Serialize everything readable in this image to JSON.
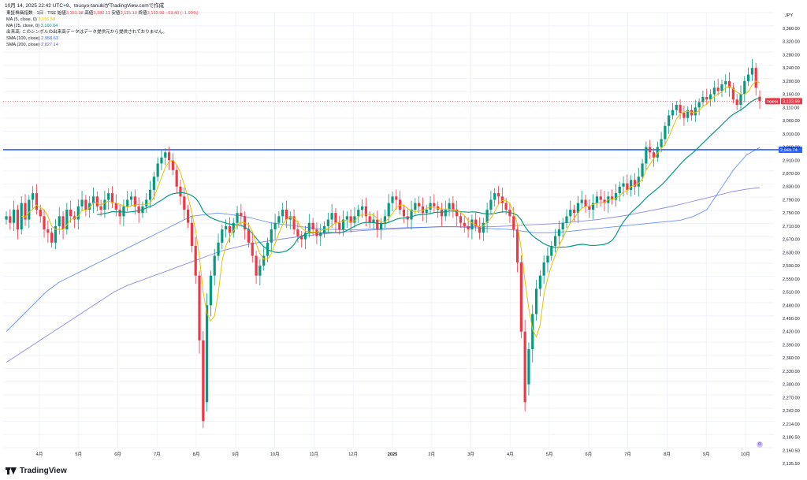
{
  "header": {
    "title": "10月 14, 2025 22:42 UTC+9、tousyo-tanukiがTradingView.comで作成"
  },
  "legend": {
    "symbol_line": "東証株価指数 · 1日 · TSE",
    "ohlc": [
      {
        "label": "始値",
        "value": "3,151.38"
      },
      {
        "label": "高値",
        "value": "3,180.11"
      },
      {
        "label": "安値",
        "value": "3,115.10"
      },
      {
        "label": "終値",
        "value": "3,133.99"
      }
    ],
    "change": "−63.40 (−1.99%)",
    "indicators": [
      {
        "name": "MA (5, close, 0)",
        "value": "3,155.58",
        "color": "#e8c000"
      },
      {
        "name": "MA (25, close, 0)",
        "value": "3,160.04",
        "color": "#089981"
      }
    ],
    "volume_note": "出来高: このシンボルの出来高データはデータ提供元から提供されておりません。",
    "sma": [
      {
        "name": "SMA (100, close)",
        "value": "2,958.63",
        "color": "#2962ff"
      },
      {
        "name": "SMA (200, close)",
        "value": "2,827.14",
        "color": "#5b5bd6"
      }
    ]
  },
  "brand": {
    "name": "TradingView"
  },
  "chart_data": {
    "type": "line",
    "currency": "JPY",
    "y_ticks": [
      "3,360.00",
      "3,320.00",
      "3,280.00",
      "3,240.00",
      "3,200.00",
      "3,160.00",
      "3,110.00",
      "3,060.00",
      "3,010.00",
      "2,960.00",
      "2,910.00",
      "2,870.00",
      "2,830.00",
      "2,790.00",
      "2,750.00",
      "2,710.00",
      "2,670.00",
      "2,630.00",
      "2,590.00",
      "2,550.00",
      "2,510.00",
      "2,480.00",
      "2,450.00",
      "2,420.00",
      "2,390.00",
      "2,360.00",
      "2,330.00",
      "2,300.00",
      "2,270.00",
      "2,242.00",
      "2,214.00",
      "2,186.50",
      "2,160.50",
      "2,135.50"
    ],
    "x_labels": [
      "4月",
      "5月",
      "6月",
      "7月",
      "8月",
      "9月",
      "10月",
      "11月",
      "12月",
      "2025",
      "2月",
      "3月",
      "4月",
      "5月",
      "6月",
      "7月",
      "8月",
      "9月",
      "10月"
    ],
    "horizontal_line": {
      "value": 2949.74,
      "label": "2,949.74",
      "color": "#2962ff"
    },
    "last_price": {
      "value": 3133.99,
      "label": "3,133.99",
      "symbol": "TOPIX",
      "color": "#f23645"
    },
    "ylim": [
      2135.5,
      3360
    ],
    "candles": {
      "up_color": "#089981",
      "down_color": "#f23645",
      "close": [
        2740,
        2720,
        2760,
        2700,
        2780,
        2730,
        2790,
        2810,
        2760,
        2740,
        2700,
        2690,
        2660,
        2710,
        2740,
        2700,
        2760,
        2740,
        2730,
        2770,
        2790,
        2760,
        2780,
        2800,
        2770,
        2760,
        2790,
        2810,
        2780,
        2760,
        2740,
        2770,
        2790,
        2800,
        2770,
        2750,
        2770,
        2790,
        2820,
        2860,
        2900,
        2920,
        2940,
        2910,
        2880,
        2830,
        2800,
        2760,
        2720,
        2650,
        2560,
        2400,
        2220,
        2480,
        2560,
        2620,
        2660,
        2700,
        2710,
        2690,
        2720,
        2750,
        2740,
        2700,
        2660,
        2620,
        2560,
        2590,
        2620,
        2660,
        2700,
        2720,
        2740,
        2760,
        2730,
        2740,
        2700,
        2680,
        2670,
        2690,
        2720,
        2700,
        2680,
        2690,
        2710,
        2730,
        2750,
        2720,
        2700,
        2730,
        2740,
        2720,
        2740,
        2760,
        2770,
        2740,
        2720,
        2730,
        2700,
        2720,
        2740,
        2780,
        2800,
        2790,
        2760,
        2740,
        2730,
        2760,
        2780,
        2770,
        2750,
        2760,
        2780,
        2770,
        2760,
        2740,
        2760,
        2780,
        2760,
        2740,
        2720,
        2710,
        2700,
        2730,
        2710,
        2690,
        2720,
        2760,
        2790,
        2810,
        2800,
        2780,
        2760,
        2740,
        2700,
        2600,
        2420,
        2260,
        2380,
        2460,
        2520,
        2560,
        2600,
        2620,
        2650,
        2680,
        2700,
        2720,
        2740,
        2760,
        2750,
        2780,
        2790,
        2770,
        2760,
        2780,
        2800,
        2790,
        2780,
        2800,
        2790,
        2810,
        2830,
        2840,
        2820,
        2850,
        2830,
        2860,
        2900,
        2960,
        2940,
        2920,
        2960,
        2990,
        3040,
        3080,
        3100,
        3120,
        3090,
        3070,
        3100,
        3080,
        3110,
        3130,
        3150,
        3140,
        3160,
        3180,
        3170,
        3190,
        3200,
        3180,
        3140,
        3120,
        3160,
        3200,
        3220,
        3240,
        3180,
        3134
      ],
      "open": [
        2730,
        2740,
        2720,
        2760,
        2700,
        2780,
        2730,
        2790,
        2810,
        2760,
        2740,
        2700,
        2690,
        2660,
        2710,
        2740,
        2700,
        2760,
        2740,
        2730,
        2770,
        2790,
        2760,
        2780,
        2800,
        2770,
        2760,
        2790,
        2810,
        2780,
        2760,
        2740,
        2770,
        2790,
        2800,
        2770,
        2750,
        2770,
        2790,
        2820,
        2860,
        2900,
        2920,
        2940,
        2910,
        2880,
        2830,
        2800,
        2760,
        2720,
        2650,
        2560,
        2400,
        2260,
        2480,
        2560,
        2620,
        2660,
        2700,
        2710,
        2690,
        2720,
        2750,
        2740,
        2700,
        2660,
        2620,
        2560,
        2590,
        2620,
        2660,
        2700,
        2720,
        2740,
        2760,
        2730,
        2740,
        2700,
        2680,
        2670,
        2690,
        2720,
        2700,
        2680,
        2690,
        2710,
        2730,
        2750,
        2720,
        2700,
        2730,
        2740,
        2720,
        2740,
        2760,
        2770,
        2740,
        2720,
        2730,
        2700,
        2720,
        2740,
        2780,
        2800,
        2790,
        2760,
        2740,
        2730,
        2760,
        2780,
        2770,
        2750,
        2760,
        2780,
        2770,
        2760,
        2740,
        2760,
        2780,
        2760,
        2740,
        2720,
        2710,
        2700,
        2730,
        2710,
        2690,
        2720,
        2760,
        2790,
        2810,
        2800,
        2780,
        2760,
        2740,
        2700,
        2600,
        2420,
        2300,
        2380,
        2460,
        2520,
        2560,
        2600,
        2620,
        2650,
        2680,
        2700,
        2720,
        2740,
        2760,
        2750,
        2780,
        2790,
        2770,
        2760,
        2780,
        2800,
        2790,
        2780,
        2800,
        2790,
        2810,
        2830,
        2840,
        2820,
        2850,
        2830,
        2860,
        2900,
        2960,
        2940,
        2920,
        2960,
        2990,
        3040,
        3080,
        3100,
        3120,
        3090,
        3070,
        3100,
        3080,
        3110,
        3130,
        3150,
        3140,
        3160,
        3180,
        3170,
        3190,
        3200,
        3180,
        3140,
        3120,
        3160,
        3200,
        3220,
        3240,
        3151
      ]
    },
    "series": [
      {
        "name": "MA (5, close, 0)",
        "color": "#e8c000"
      },
      {
        "name": "MA (25, close, 0)",
        "color": "#089981"
      },
      {
        "name": "SMA (100, close)",
        "color": "#2962ff",
        "values": [
          2420,
          2450,
          2480,
          2510,
          2540,
          2560,
          2580,
          2600,
          2620,
          2640,
          2660,
          2680,
          2700,
          2720,
          2740,
          2745,
          2750,
          2745,
          2740,
          2730,
          2720,
          2715,
          2710,
          2705,
          2700,
          2700,
          2698,
          2700,
          2702,
          2703,
          2705,
          2706,
          2707,
          2708,
          2708,
          2706,
          2704,
          2702,
          2700,
          2695,
          2690,
          2690,
          2692,
          2696,
          2700,
          2704,
          2708,
          2712,
          2716,
          2720,
          2724,
          2728,
          2740,
          2760,
          2820,
          2880,
          2930,
          2958
        ]
      },
      {
        "name": "SMA (200, close)",
        "color": "#5b5bd6",
        "values": [
          2350,
          2370,
          2390,
          2410,
          2430,
          2450,
          2470,
          2490,
          2510,
          2530,
          2545,
          2560,
          2575,
          2590,
          2605,
          2620,
          2635,
          2645,
          2655,
          2662,
          2668,
          2674,
          2680,
          2684,
          2688,
          2692,
          2695,
          2698,
          2700,
          2702,
          2704,
          2706,
          2708,
          2708,
          2708,
          2708,
          2708,
          2710,
          2712,
          2714,
          2716,
          2718,
          2722,
          2726,
          2730,
          2736,
          2742,
          2750,
          2758,
          2766,
          2775,
          2785,
          2795,
          2805,
          2815,
          2822,
          2827
        ]
      }
    ]
  }
}
